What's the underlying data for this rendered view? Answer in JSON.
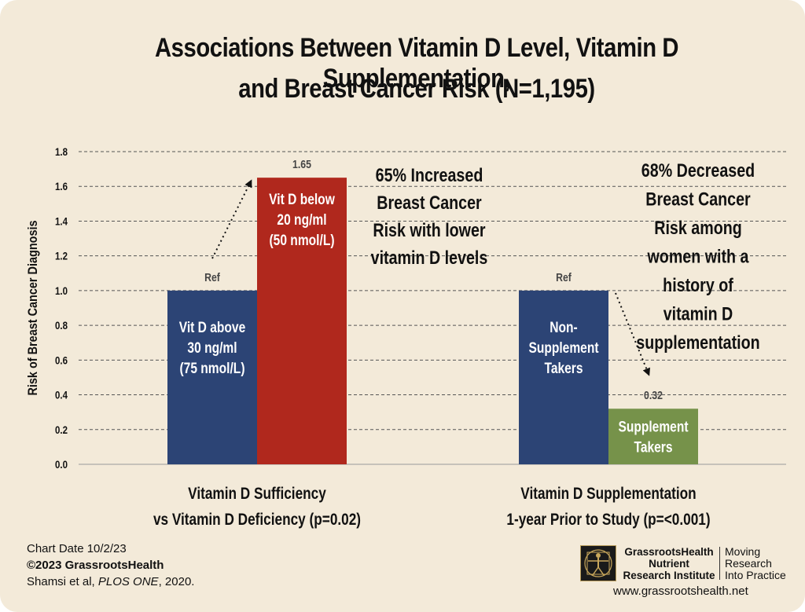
{
  "title_line1": "Associations Between Vitamin D Level, Vitamin D Supplementation,",
  "title_line2": "and Breast Cancer Risk (N=1,195)",
  "chart_data": {
    "type": "bar",
    "ylabel": "Risk of Breast Cancer Diagnosis",
    "ylim": [
      0,
      1.8
    ],
    "yticks": [
      "0.0",
      "0.2",
      "0.4",
      "0.6",
      "0.8",
      "1.0",
      "1.2",
      "1.4",
      "1.6",
      "1.8"
    ],
    "grid": true,
    "groups": [
      {
        "label_line1": "Vitamin D Sufficiency",
        "label_line2": "vs Vitamin D Deficiency (p=0.02)",
        "bars": [
          {
            "lines": [
              "Vit D above",
              "30 ng/ml",
              "(75 nmol/L)"
            ],
            "value": 1.0,
            "value_label": "Ref",
            "color": "#2c4475"
          },
          {
            "lines": [
              "Vit D below",
              "20 ng/ml",
              "(50 nmol/L)"
            ],
            "value": 1.65,
            "value_label": "1.65",
            "color": "#b0281d"
          }
        ],
        "annotation": [
          "65% Increased",
          "Breast Cancer",
          "Risk with lower",
          "vitamin D levels"
        ]
      },
      {
        "label_line1": "Vitamin D Supplementation",
        "label_line2": "1-year Prior to Study (p=<0.001)",
        "bars": [
          {
            "lines": [
              "Non-",
              "Supplement",
              "Takers"
            ],
            "value": 1.0,
            "value_label": "Ref",
            "color": "#2c4475"
          },
          {
            "lines": [
              "Supplement",
              "Takers"
            ],
            "value": 0.32,
            "value_label": "0.32",
            "color": "#76924a"
          }
        ],
        "annotation": [
          "68% Decreased",
          "Breast Cancer",
          "Risk among",
          "women with a",
          "history of",
          "vitamin D",
          "supplementation"
        ]
      }
    ]
  },
  "footer": {
    "chart_date": "Chart Date 10/2/23",
    "copyright": "©2023 GrassrootsHealth",
    "citation_pre": "Shamsi et al, ",
    "citation_journal": "PLOS ONE",
    "citation_post": ", 2020."
  },
  "logo": {
    "name_lines": [
      "GrassrootsHealth",
      "Nutrient",
      "Research Institute"
    ],
    "tag_lines": [
      "Moving",
      "Research",
      "Into Practice"
    ],
    "website": "www.grassrootshealth.net"
  }
}
